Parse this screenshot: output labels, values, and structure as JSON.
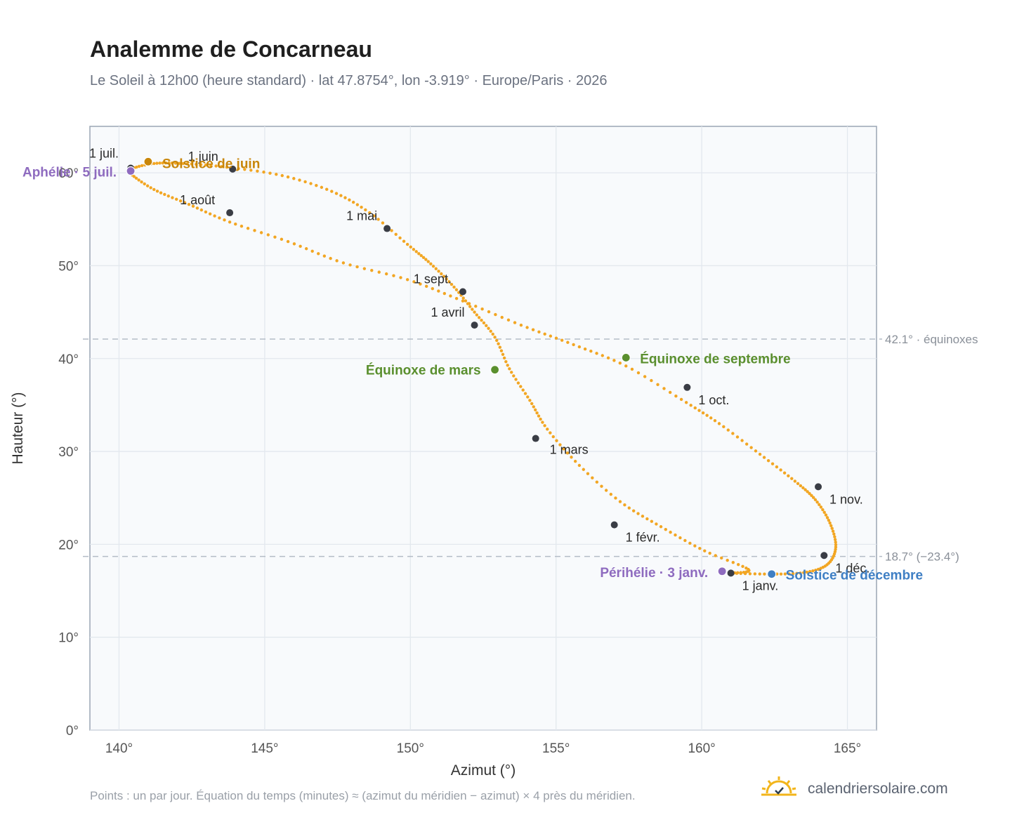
{
  "title": "Analemme de Concarneau",
  "subtitle": "Le Soleil à 12h00 (heure standard) · lat 47.8754°, lon -3.919° · Europe/Paris · 2026",
  "footnote": "Points : un par jour. Équation du temps (minutes) ≈ (azimut du méridien − azimut) × 4 près du méridien.",
  "brand": {
    "name": "calendriersolaire.com",
    "icon": "sun-icon"
  },
  "colors": {
    "curve": "#f2a623",
    "month_dot": "#3a3d45",
    "aphelion": "#8e6bbf",
    "solstice_june": "#c8860a",
    "solstice_dec": "#3f7fc4",
    "equinox": "#5a8f2e",
    "frame": "#9aa5b4",
    "plot_bg": "#f8fafc"
  },
  "chart_data": {
    "type": "scatter",
    "xlabel": "Azimut (°)",
    "ylabel": "Hauteur (°)",
    "xlim": [
      139,
      166
    ],
    "ylim": [
      0,
      65
    ],
    "xticks": [
      140,
      145,
      150,
      155,
      160,
      165
    ],
    "xtick_labels": [
      "140°",
      "145°",
      "150°",
      "155°",
      "160°",
      "165°"
    ],
    "yticks": [
      0,
      10,
      20,
      30,
      40,
      50,
      60
    ],
    "ytick_labels": [
      "0°",
      "10°",
      "20°",
      "30°",
      "40°",
      "50°",
      "60°"
    ],
    "grid": true,
    "series": [
      {
        "points_per_day": true,
        "anchors": [
          [
            161.0,
            16.9
          ],
          [
            162.3,
            16.8
          ],
          [
            163.5,
            16.95
          ],
          [
            164.3,
            17.8
          ],
          [
            164.6,
            19.7
          ],
          [
            164.4,
            22.3
          ],
          [
            163.9,
            24.8
          ],
          [
            163.2,
            26.8
          ],
          [
            162.0,
            29.7
          ],
          [
            160.6,
            33.0
          ],
          [
            159.3,
            35.6
          ],
          [
            157.4,
            39.2
          ],
          [
            155.6,
            41.5
          ],
          [
            153.8,
            43.6
          ],
          [
            151.8,
            46.2
          ],
          [
            149.9,
            48.5
          ],
          [
            147.7,
            50.3
          ],
          [
            145.8,
            52.6
          ],
          [
            143.8,
            54.7
          ],
          [
            142.4,
            56.6
          ],
          [
            141.2,
            58.2
          ],
          [
            140.4,
            59.9
          ],
          [
            140.4,
            60.4
          ],
          [
            141.2,
            61.0
          ],
          [
            142.2,
            61.0
          ],
          [
            143.7,
            60.6
          ],
          [
            145.6,
            59.7
          ],
          [
            147.3,
            58.0
          ],
          [
            148.6,
            55.7
          ],
          [
            149.9,
            52.3
          ],
          [
            150.7,
            50.2
          ],
          [
            151.5,
            47.7
          ],
          [
            152.2,
            45.0
          ],
          [
            152.9,
            42.3
          ],
          [
            153.4,
            38.9
          ],
          [
            154.1,
            35.5
          ],
          [
            154.7,
            32.4
          ],
          [
            155.8,
            28.5
          ],
          [
            157.2,
            24.6
          ],
          [
            158.6,
            21.9
          ],
          [
            160.1,
            19.3
          ],
          [
            161.6,
            17.3
          ],
          [
            161.0,
            16.9
          ]
        ]
      }
    ],
    "month_markers": [
      {
        "label": "1 janv.",
        "x": 161.0,
        "y": 16.9
      },
      {
        "label": "1 févr.",
        "x": 157.0,
        "y": 22.1
      },
      {
        "label": "1 mars",
        "x": 154.3,
        "y": 31.4
      },
      {
        "label": "1 avril",
        "x": 152.2,
        "y": 43.6
      },
      {
        "label": "1 mai",
        "x": 149.2,
        "y": 54.0
      },
      {
        "label": "1 juin",
        "x": 143.9,
        "y": 60.4
      },
      {
        "label": "1 juil.",
        "x": 140.4,
        "y": 60.5
      },
      {
        "label": "1 août",
        "x": 143.8,
        "y": 55.7
      },
      {
        "label": "1 sept.",
        "x": 151.8,
        "y": 47.2
      },
      {
        "label": "1 oct.",
        "x": 159.5,
        "y": 36.9
      },
      {
        "label": "1 nov.",
        "x": 164.0,
        "y": 26.2
      },
      {
        "label": "1 déc.",
        "x": 164.2,
        "y": 18.8
      }
    ],
    "events": [
      {
        "label": "Aphélie · 5 juil.",
        "x": 140.4,
        "y": 60.2,
        "kind": "aphelion"
      },
      {
        "label": "Solstice de juin",
        "x": 141.0,
        "y": 61.2,
        "kind": "solstice_june"
      },
      {
        "label": "Équinoxe de mars",
        "x": 152.9,
        "y": 38.8,
        "kind": "equinox"
      },
      {
        "label": "Équinoxe de septembre",
        "x": 157.4,
        "y": 40.1,
        "kind": "equinox"
      },
      {
        "label": "Périhélie · 3 janv.",
        "x": 160.7,
        "y": 17.1,
        "kind": "aphelion"
      },
      {
        "label": "Solstice de décembre",
        "x": 162.4,
        "y": 16.8,
        "kind": "solstice_dec"
      }
    ],
    "reference_lines": [
      {
        "y": 42.1,
        "label": "42.1° · équinoxes"
      },
      {
        "y": 18.7,
        "label": "18.7° (−23.4°)"
      }
    ]
  }
}
